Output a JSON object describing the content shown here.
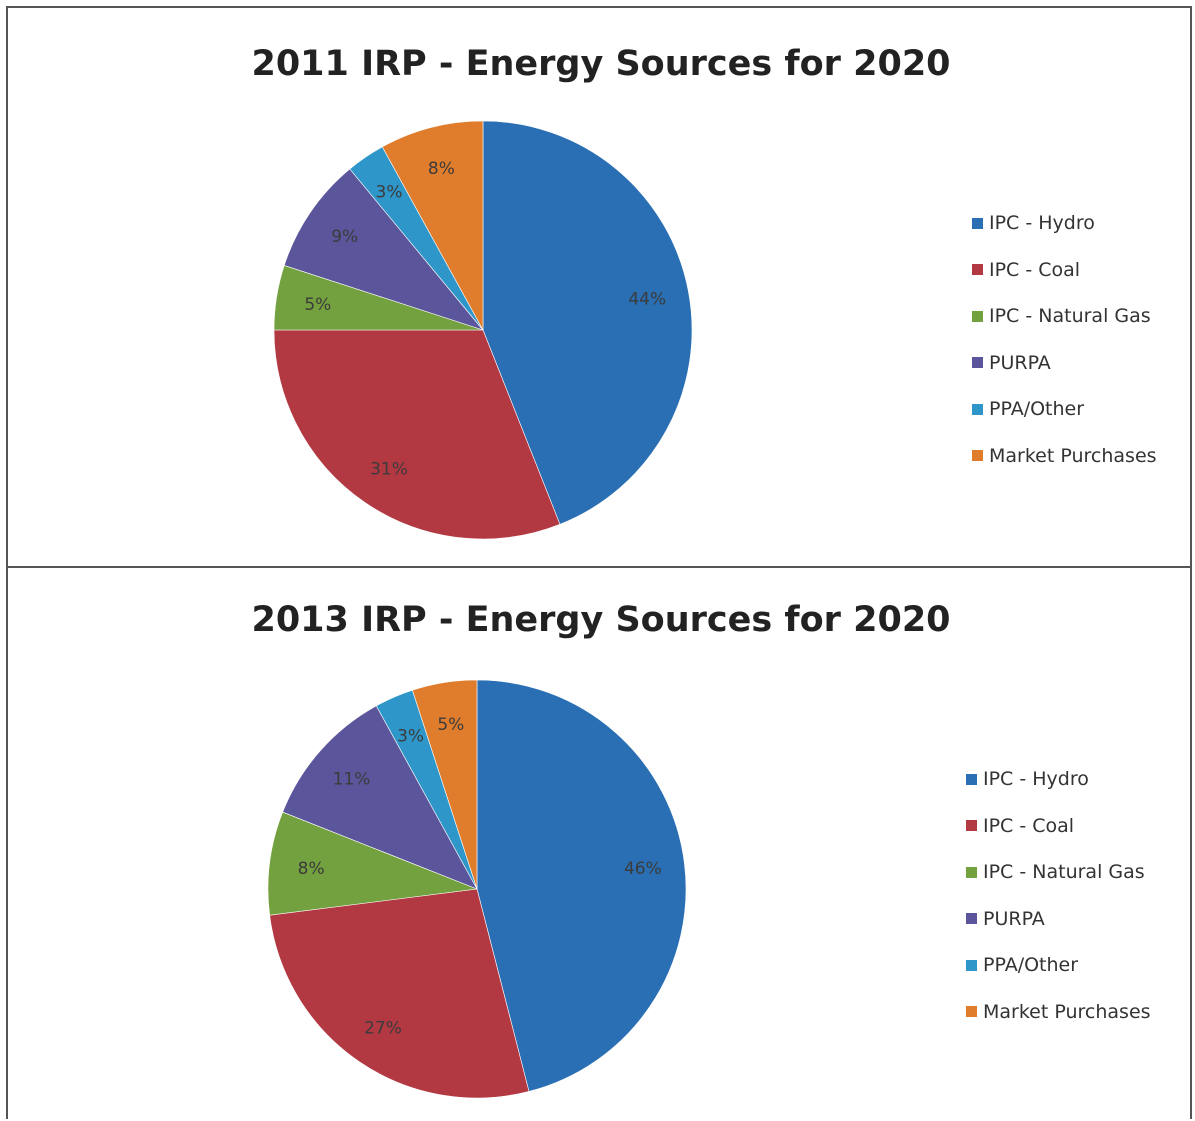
{
  "chart_data": [
    {
      "type": "pie",
      "title": "2011 IRP - Energy Sources for 2020",
      "categories": [
        "IPC - Hydro",
        "IPC - Coal",
        "IPC - Natural Gas",
        "PURPA",
        "PPA/Other",
        "Market Purchases"
      ],
      "values": [
        44,
        31,
        5,
        9,
        3,
        8
      ],
      "value_labels": [
        "44%",
        "31%",
        "5%",
        "9%",
        "3%",
        "8%"
      ],
      "colors": [
        "#2a6eb4",
        "#b23842",
        "#74a13f",
        "#5b559b",
        "#2f96c9",
        "#e07d2c"
      ],
      "legend_position": "right"
    },
    {
      "type": "pie",
      "title": "2013 IRP - Energy Sources for 2020",
      "categories": [
        "IPC - Hydro",
        "IPC - Coal",
        "IPC - Natural Gas",
        "PURPA",
        "PPA/Other",
        "Market Purchases"
      ],
      "values": [
        46,
        27,
        8,
        11,
        3,
        5
      ],
      "value_labels": [
        "46%",
        "27%",
        "8%",
        "11%",
        "3%",
        "5%"
      ],
      "colors": [
        "#2a6eb4",
        "#b23842",
        "#74a13f",
        "#5b559b",
        "#2f96c9",
        "#e07d2c"
      ],
      "legend_position": "right"
    }
  ]
}
